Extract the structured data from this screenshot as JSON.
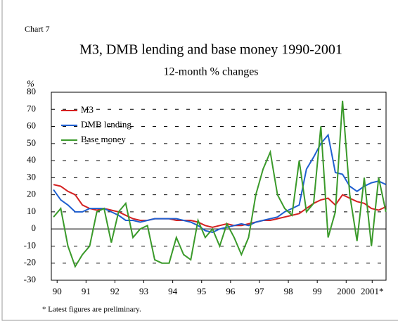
{
  "chart_data": {
    "type": "line",
    "label": "Chart 7",
    "title": "M3, DMB lending and base money 1990-2001",
    "subtitle": "12-month % changes",
    "y_label": "%",
    "note": "* Latest figures are preliminary.",
    "x": [
      1990.375,
      1990.625,
      1990.875,
      1991.125,
      1991.375,
      1991.625,
      1991.875,
      1992.125,
      1992.375,
      1992.625,
      1992.875,
      1993.125,
      1993.375,
      1993.625,
      1993.875,
      1994.125,
      1994.375,
      1994.625,
      1994.875,
      1995.125,
      1995.375,
      1995.625,
      1995.875,
      1996.125,
      1996.375,
      1996.625,
      1996.875,
      1997.125,
      1997.375,
      1997.625,
      1997.875,
      1998.125,
      1998.375,
      1998.625,
      1998.875,
      1999.125,
      1999.375,
      1999.625,
      1999.875,
      2000.125,
      2000.375,
      2000.625,
      2000.875,
      2001.125,
      2001.375,
      2001.625,
      2001.875
    ],
    "series": [
      {
        "name": "M3",
        "color": "#d42020",
        "values": [
          26,
          25,
          22,
          20,
          14,
          12,
          11,
          12,
          11,
          10,
          8,
          6,
          5,
          5,
          6,
          6,
          6,
          5,
          5,
          5,
          4,
          2,
          1,
          2,
          3,
          2,
          2,
          3,
          4,
          5,
          5,
          6,
          7,
          8,
          9,
          12,
          15,
          17,
          18,
          14,
          20,
          18,
          16,
          15,
          12,
          11,
          13
        ]
      },
      {
        "name": "DMB lending",
        "color": "#1f5fd0",
        "values": [
          23,
          17,
          14,
          10,
          10,
          12,
          12,
          12,
          10,
          8,
          5,
          5,
          4,
          5,
          6,
          6,
          6,
          6,
          5,
          4,
          2,
          -1,
          -2,
          0,
          1,
          2,
          3,
          2,
          4,
          5,
          6,
          7,
          10,
          12,
          14,
          35,
          42,
          50,
          55,
          33,
          32,
          25,
          22,
          25,
          27,
          28,
          26
        ]
      },
      {
        "name": "Base money",
        "color": "#3a9a2a",
        "values": [
          7,
          12,
          -10,
          -22,
          -15,
          -10,
          10,
          12,
          -8,
          10,
          15,
          -5,
          0,
          2,
          -18,
          -20,
          -20,
          -5,
          -15,
          -18,
          5,
          -5,
          0,
          -10,
          3,
          -5,
          -15,
          -5,
          20,
          35,
          45,
          20,
          12,
          8,
          40,
          10,
          15,
          60,
          -5,
          10,
          75,
          20,
          -7,
          30,
          -10,
          30,
          10
        ]
      }
    ],
    "xlim": [
      1990.3,
      2001.88
    ],
    "xticks": [
      {
        "value": 1990.5,
        "label": "90"
      },
      {
        "value": 1991.5,
        "label": "91"
      },
      {
        "value": 1992.5,
        "label": "92"
      },
      {
        "value": 1993.5,
        "label": "93"
      },
      {
        "value": 1994.5,
        "label": "94"
      },
      {
        "value": 1995.5,
        "label": "95"
      },
      {
        "value": 1996.5,
        "label": "96"
      },
      {
        "value": 1997.5,
        "label": "97"
      },
      {
        "value": 1998.5,
        "label": "98"
      },
      {
        "value": 1999.5,
        "label": "99"
      },
      {
        "value": 2000.5,
        "label": "2000"
      },
      {
        "value": 2001.4,
        "label": "2001*"
      }
    ],
    "ylim": [
      -30,
      80
    ],
    "yticks": [
      -30,
      -20,
      -10,
      0,
      10,
      20,
      30,
      40,
      50,
      60,
      70,
      80
    ],
    "grid": true,
    "legend": "upper left"
  }
}
